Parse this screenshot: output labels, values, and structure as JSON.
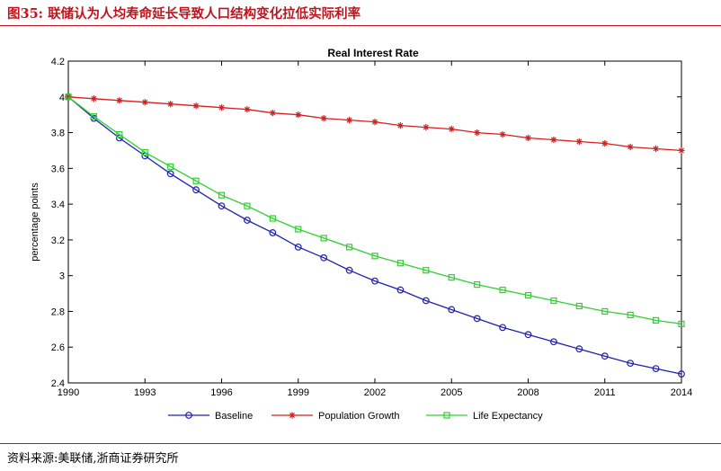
{
  "figure": {
    "title": "图35:   联储认为人均寿命延长导致人口结构变化拉低实际利率",
    "source": "资料来源:美联储,浙商证券研究所"
  },
  "chart_data": {
    "type": "line",
    "title": "Real Interest Rate",
    "xlabel": "",
    "ylabel": "percentage points",
    "xlim": [
      1990,
      2014
    ],
    "ylim": [
      2.4,
      4.2
    ],
    "x_ticks": [
      "1990",
      "1993",
      "1996",
      "1999",
      "2002",
      "2005",
      "2008",
      "2011",
      "2014"
    ],
    "y_ticks": [
      "2.4",
      "2.6",
      "2.8",
      "3",
      "3.2",
      "3.4",
      "3.6",
      "3.8",
      "4",
      "4.2"
    ],
    "legend_position": "bottom",
    "x": [
      1990,
      1991,
      1992,
      1993,
      1994,
      1995,
      1996,
      1997,
      1998,
      1999,
      2000,
      2001,
      2002,
      2003,
      2004,
      2005,
      2006,
      2007,
      2008,
      2009,
      2010,
      2011,
      2012,
      2013,
      2014
    ],
    "series": [
      {
        "name": "Baseline",
        "color": "#2020b0",
        "marker": "circle",
        "values": [
          4.0,
          3.88,
          3.77,
          3.67,
          3.57,
          3.48,
          3.39,
          3.31,
          3.24,
          3.16,
          3.1,
          3.03,
          2.97,
          2.92,
          2.86,
          2.81,
          2.76,
          2.71,
          2.67,
          2.63,
          2.59,
          2.55,
          2.51,
          2.48,
          2.45
        ]
      },
      {
        "name": "Population Growth",
        "color": "#d42020",
        "marker": "star",
        "values": [
          4.0,
          3.99,
          3.98,
          3.97,
          3.96,
          3.95,
          3.94,
          3.93,
          3.91,
          3.9,
          3.88,
          3.87,
          3.86,
          3.84,
          3.83,
          3.82,
          3.8,
          3.79,
          3.77,
          3.76,
          3.75,
          3.74,
          3.72,
          3.71,
          3.7
        ]
      },
      {
        "name": "Life Expectancy",
        "color": "#30d030",
        "marker": "square",
        "values": [
          4.0,
          3.89,
          3.79,
          3.69,
          3.61,
          3.53,
          3.45,
          3.39,
          3.32,
          3.26,
          3.21,
          3.16,
          3.11,
          3.07,
          3.03,
          2.99,
          2.95,
          2.92,
          2.89,
          2.86,
          2.83,
          2.8,
          2.78,
          2.75,
          2.73
        ]
      }
    ]
  }
}
